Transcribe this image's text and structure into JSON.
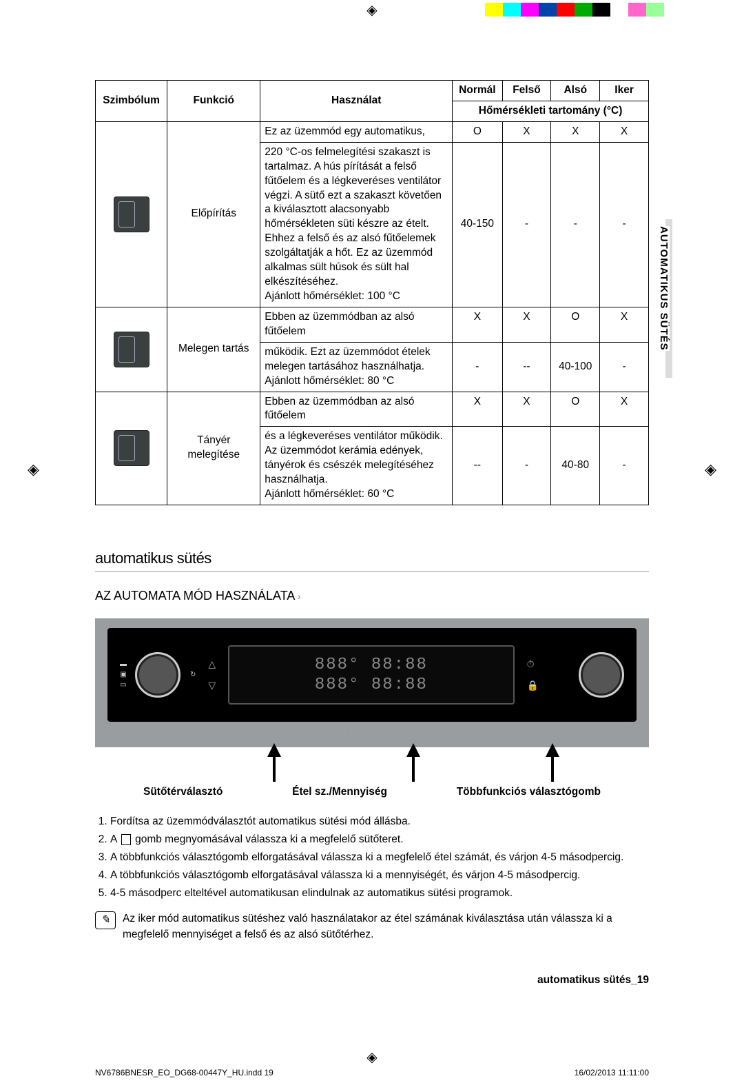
{
  "crop": {
    "color_strip": [
      "#ffffff",
      "#ffff00",
      "#00ffff",
      "#ff00ff",
      "#0044aa",
      "#ff0000",
      "#00aa00",
      "#000000",
      "#ffffff",
      "#ff66cc",
      "#99ff99",
      "#ffffff"
    ]
  },
  "table": {
    "headers": {
      "sym": "Szimbólum",
      "func": "Funkció",
      "use": "Használat",
      "normal": "Normál",
      "upper": "Felső",
      "lower": "Alsó",
      "twin": "Iker",
      "range": "Hőmérsékleti tartomány (°C)"
    },
    "rows": [
      {
        "func": "Előpírítás",
        "use": "Ez az üzemmód egy automatikus, 220 °C-os felmelegítési szakaszt is tartalmaz. A hús pírítását a felső fűtőelem és a légkeveréses ventilátor végzi. A sütő ezt a szakaszt követően a kiválasztott alacsonyabb hőmérsékleten süti készre az ételt. Ehhez a felső és az alsó fűtőelemek szolgáltatják a hőt. Ez az üzemmód alkalmas sült húsok és sült hal elkészítéséhez.\nAjánlott hőmérséklet: 100 °C",
        "top": {
          "normal": "O",
          "upper": "X",
          "lower": "X",
          "twin": "X"
        },
        "range": {
          "normal": "40-150",
          "upper": "-",
          "lower": "-",
          "twin": "-"
        }
      },
      {
        "func": "Melegen tartás",
        "use": "Ebben az üzemmódban az alsó fűtőelem működik. Ezt az üzemmódot ételek melegen tartásához használhatja.\nAjánlott hőmérséklet: 80 °C",
        "top": {
          "normal": "X",
          "upper": "X",
          "lower": "O",
          "twin": "X"
        },
        "range": {
          "normal": "-",
          "upper": "--",
          "lower": "40-100",
          "twin": "-"
        }
      },
      {
        "func": "Tányér melegítése",
        "use": "Ebben az üzemmódban az alsó fűtőelem és a légkeveréses ventilátor működik. Az üzemmódot kerámia edények, tányérok és csészék melegítéséhez használhatja.\nAjánlott hőmérséklet: 60 °C",
        "top": {
          "normal": "X",
          "upper": "X",
          "lower": "O",
          "twin": "X"
        },
        "range": {
          "normal": "--",
          "upper": "-",
          "lower": "40-80",
          "twin": "-"
        }
      }
    ]
  },
  "side_tab": "AUTOMATIKUS SÜTÉS",
  "section2": {
    "heading": "automatikus sütés",
    "sub": "AZ AUTOMATA MÓD HASZNÁLATA",
    "label1": "Sütőtérválasztó",
    "label2": "Étel sz./Mennyiség",
    "label3": "Többfunkciós választógomb",
    "lcd_line1": "888°  88:88",
    "lcd_line2": "888°  88:88",
    "strip_btns": [
      "▭",
      "🌡",
      "⟼",
      "⟶"
    ],
    "btn_col1": [
      "△",
      "▽"
    ],
    "btn_col2": [
      "⏱",
      "🔒"
    ]
  },
  "steps": [
    "Fordítsa az üzemmódválasztót automatikus sütési mód állásba.",
    "A __ICON__ gomb megnyomásával válassza ki a megfelelő sütőteret.",
    "A többfunkciós választógomb elforgatásával válassza ki a megfelelő étel számát, és várjon 4-5 másodpercig.",
    "A többfunkciós választógomb elforgatásával válassza ki a mennyiségét, és várjon 4-5 másodpercig.",
    "4-5 másodperc elteltével automatikusan elindulnak az automatikus sütési programok."
  ],
  "note": "Az iker mód automatikus sütéshez való használatakor az étel számának kiválasztása után válassza ki a megfelelő mennyiséget a felső és az alsó sütőtérhez.",
  "footer_page": "automatikus sütés_19",
  "print": {
    "file": "NV6786BNESR_EO_DG68-00447Y_HU.indd   19",
    "date": "16/02/2013   11:11:00"
  }
}
